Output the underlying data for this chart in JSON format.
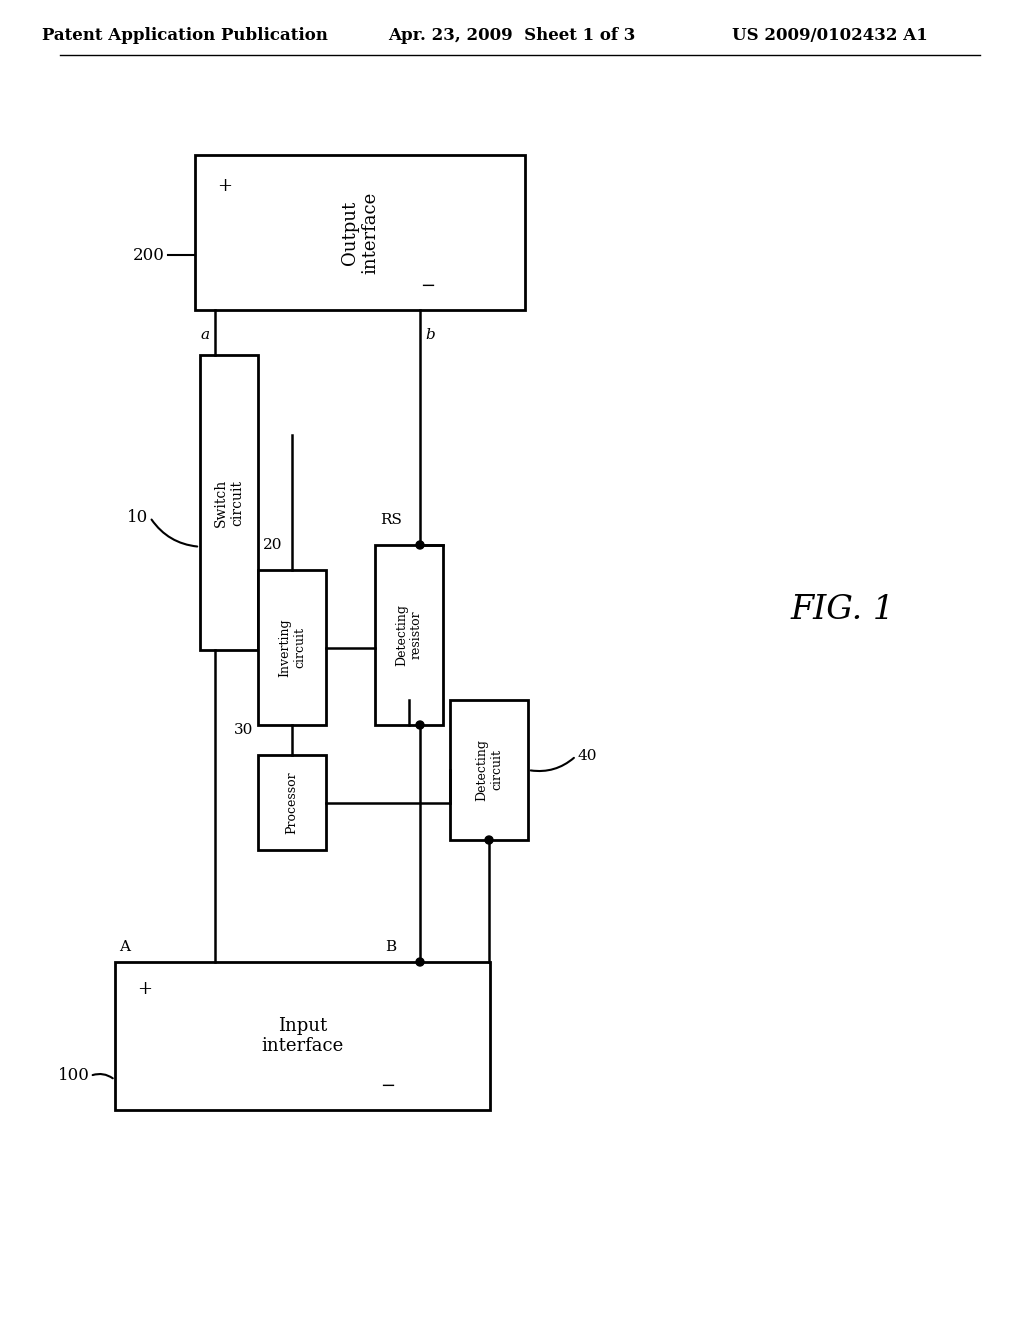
{
  "title_left": "Patent Application Publication",
  "title_mid": "Apr. 23, 2009  Sheet 1 of 3",
  "title_right": "US 2009/0102432 A1",
  "fig_label": "FIG. 1",
  "bg_color": "#ffffff",
  "line_color": "#000000",
  "box_color": "#ffffff",
  "box_edge": "#000000"
}
